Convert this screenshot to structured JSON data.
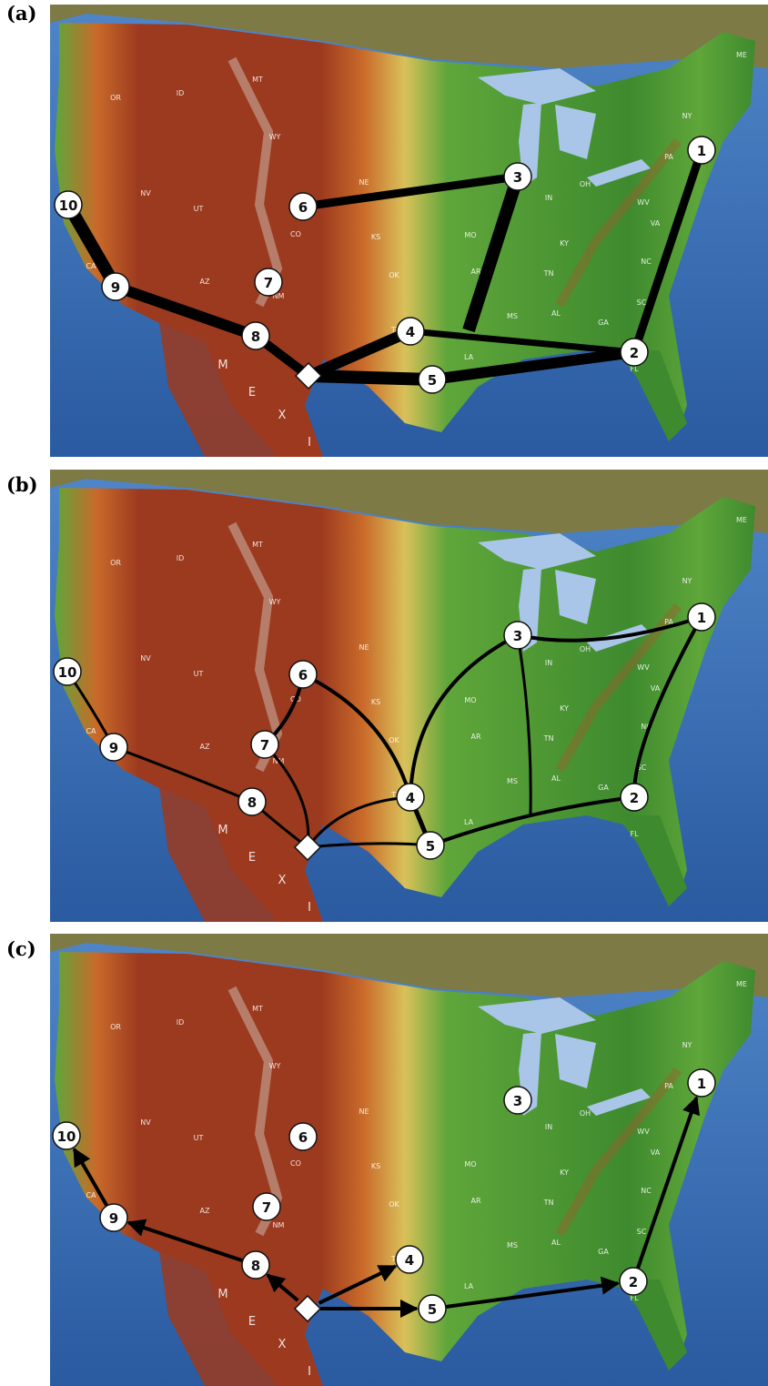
{
  "panels": [
    {
      "label": "(a)",
      "style": "thick-lines",
      "edges": [
        [
          "hub",
          "5"
        ],
        [
          "5",
          "2"
        ],
        [
          "2",
          "1"
        ],
        [
          "hub",
          "4"
        ],
        [
          "4",
          "2"
        ],
        [
          "hub",
          "8"
        ],
        [
          "8",
          "9"
        ],
        [
          "9",
          "10"
        ],
        [
          "3",
          "6"
        ],
        [
          "3",
          "la_junction"
        ]
      ],
      "hidden_nodes": [],
      "visible_extra": [
        "7"
      ]
    },
    {
      "label": "(b)",
      "style": "curved-lines",
      "edges": [],
      "hidden_nodes": [],
      "visible_extra": []
    },
    {
      "label": "(c)",
      "style": "arrows",
      "edges": [
        [
          "hub",
          "8"
        ],
        [
          "8",
          "9"
        ],
        [
          "9",
          "10"
        ],
        [
          "hub",
          "4"
        ],
        [
          "hub",
          "5"
        ],
        [
          "5",
          "2"
        ],
        [
          "2",
          "1"
        ]
      ],
      "hidden_nodes": [],
      "visible_extra": [
        "3",
        "6",
        "7"
      ]
    }
  ],
  "nodes": {
    "1": "1",
    "2": "2",
    "3": "3",
    "4": "4",
    "5": "5",
    "6": "6",
    "7": "7",
    "8": "8",
    "9": "9",
    "10": "10"
  },
  "map_labels": {
    "OR": "OR",
    "ID": "ID",
    "MT": "MT",
    "WY": "WY",
    "NV": "NV",
    "UT": "UT",
    "CO": "CO",
    "AZ": "AZ",
    "NM": "NM",
    "NE": "NE",
    "TX": "TX",
    "OK": "OK",
    "KS": "KS",
    "LA": "LA",
    "MS": "MS",
    "AL": "AL",
    "GA": "GA",
    "FL": "FL",
    "SC": "SC",
    "NC": "NC",
    "TN": "TN",
    "KY": "KY",
    "VA": "VA",
    "WV": "WV",
    "OH": "OH",
    "IN": "IN",
    "PA": "PA",
    "NY": "NY",
    "ME": "ME",
    "AR": "AR",
    "MO": "MO",
    "CA": "CA",
    "M": "M",
    "E": "E",
    "X": "X",
    "I": "I"
  },
  "colors": {
    "ocean": "#2a5aa0",
    "ocean_light": "#4f86c8",
    "desert_red": "#9c3a1f",
    "desert_orange": "#c96a2a",
    "plains_yellow": "#d9c15a",
    "lowland_green": "#5fa63a",
    "forest_green": "#3e8a2e",
    "canada_olive": "#7d7a45",
    "lake": "#a9c6e8",
    "line": "#000000",
    "node_fill": "#ffffff"
  }
}
